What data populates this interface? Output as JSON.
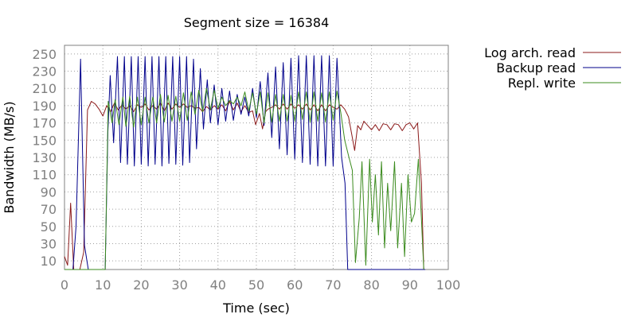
{
  "chart_data": {
    "type": "line",
    "title": "Segment size = 16384",
    "xlabel": "Time (sec)",
    "ylabel": "Bandwidth (MB/s)",
    "xlim": [
      0,
      100
    ],
    "ylim": [
      0,
      260
    ],
    "x_ticks": [
      0,
      10,
      20,
      30,
      40,
      50,
      60,
      70,
      80,
      90,
      100
    ],
    "y_ticks": [
      10,
      30,
      50,
      70,
      90,
      110,
      130,
      150,
      170,
      190,
      210,
      230,
      250
    ],
    "grid": true,
    "legend_position": "right",
    "series": [
      {
        "name": "Log arch. read",
        "color": "#8b1a1a",
        "points": [
          [
            0,
            15
          ],
          [
            0.8,
            5
          ],
          [
            1.6,
            77
          ],
          [
            2.4,
            0
          ],
          [
            3.2,
            0
          ],
          [
            4,
            0
          ],
          [
            5,
            20
          ],
          [
            6,
            185
          ],
          [
            7,
            195
          ],
          [
            8,
            192
          ],
          [
            9,
            186
          ],
          [
            10,
            178
          ],
          [
            11,
            190
          ],
          [
            12,
            183
          ],
          [
            13,
            193
          ],
          [
            14,
            185
          ],
          [
            15,
            191
          ],
          [
            16,
            186
          ],
          [
            17,
            190
          ],
          [
            18,
            183
          ],
          [
            19,
            191
          ],
          [
            20,
            188
          ],
          [
            21,
            192
          ],
          [
            22,
            185
          ],
          [
            23,
            190
          ],
          [
            24,
            186
          ],
          [
            25,
            193
          ],
          [
            26,
            184
          ],
          [
            27,
            193
          ],
          [
            28,
            186
          ],
          [
            29,
            192
          ],
          [
            30,
            188
          ],
          [
            31,
            192
          ],
          [
            32,
            188
          ],
          [
            33,
            190
          ],
          [
            34,
            187
          ],
          [
            35,
            188
          ],
          [
            36,
            183
          ],
          [
            37,
            189
          ],
          [
            38,
            185
          ],
          [
            39,
            190
          ],
          [
            40,
            186
          ],
          [
            41,
            191
          ],
          [
            42,
            184
          ],
          [
            43,
            195
          ],
          [
            44,
            185
          ],
          [
            45,
            193
          ],
          [
            46,
            183
          ],
          [
            47,
            190
          ],
          [
            48,
            182
          ],
          [
            49,
            184
          ],
          [
            49.8,
            168
          ],
          [
            50.8,
            181
          ],
          [
            51.6,
            163
          ],
          [
            52.4,
            183
          ],
          [
            53,
            186
          ],
          [
            54,
            188
          ],
          [
            55,
            191
          ],
          [
            56,
            186
          ],
          [
            57,
            192
          ],
          [
            58,
            186
          ],
          [
            59,
            192
          ],
          [
            60,
            187
          ],
          [
            61,
            191
          ],
          [
            62,
            186
          ],
          [
            63,
            192
          ],
          [
            64,
            185
          ],
          [
            65,
            191
          ],
          [
            66,
            184
          ],
          [
            67,
            191
          ],
          [
            68,
            184
          ],
          [
            69,
            191
          ],
          [
            70,
            188
          ],
          [
            71,
            186
          ],
          [
            72,
            191
          ],
          [
            73,
            186
          ],
          [
            74,
            177
          ],
          [
            74.8,
            158
          ],
          [
            75.6,
            138
          ],
          [
            76.4,
            167
          ],
          [
            77.2,
            162
          ],
          [
            78,
            172
          ],
          [
            79,
            167
          ],
          [
            80,
            162
          ],
          [
            81,
            168
          ],
          [
            82,
            161
          ],
          [
            83,
            169
          ],
          [
            84,
            168
          ],
          [
            85,
            162
          ],
          [
            86,
            169
          ],
          [
            87,
            168
          ],
          [
            88,
            161
          ],
          [
            89,
            168
          ],
          [
            90,
            170
          ],
          [
            91,
            163
          ],
          [
            92,
            170
          ],
          [
            93,
            100
          ],
          [
            93.6,
            0
          ]
        ]
      },
      {
        "name": "Backup read",
        "color": "#00008b",
        "points": [
          [
            0,
            0
          ],
          [
            1.4,
            0
          ],
          [
            2.2,
            0
          ],
          [
            3,
            50
          ],
          [
            4.2,
            244
          ],
          [
            5.2,
            28
          ],
          [
            6.2,
            0
          ],
          [
            7,
            0
          ],
          [
            8,
            0
          ],
          [
            9,
            0
          ],
          [
            10.6,
            0
          ],
          [
            11.3,
            160
          ],
          [
            11.9,
            225
          ],
          [
            12.8,
            147
          ],
          [
            13.8,
            247
          ],
          [
            14.6,
            124
          ],
          [
            15.6,
            247
          ],
          [
            16.4,
            122
          ],
          [
            17.4,
            247
          ],
          [
            18.2,
            120
          ],
          [
            19.2,
            247
          ],
          [
            20,
            122
          ],
          [
            21,
            247
          ],
          [
            21.8,
            120
          ],
          [
            22.8,
            247
          ],
          [
            23.6,
            122
          ],
          [
            24.6,
            247
          ],
          [
            25.4,
            120
          ],
          [
            26.4,
            247
          ],
          [
            27.2,
            123
          ],
          [
            28.2,
            247
          ],
          [
            29,
            122
          ],
          [
            30,
            247
          ],
          [
            30.8,
            121
          ],
          [
            31.8,
            247
          ],
          [
            32.6,
            124
          ],
          [
            33.6,
            244
          ],
          [
            34.4,
            140
          ],
          [
            35.4,
            233
          ],
          [
            36.2,
            163
          ],
          [
            37.2,
            220
          ],
          [
            38,
            170
          ],
          [
            39,
            214
          ],
          [
            40,
            168
          ],
          [
            41,
            210
          ],
          [
            42,
            172
          ],
          [
            43,
            207
          ],
          [
            44,
            173
          ],
          [
            45,
            203
          ],
          [
            46,
            180
          ],
          [
            47,
            200
          ],
          [
            48,
            178
          ],
          [
            49,
            210
          ],
          [
            50,
            176
          ],
          [
            51,
            218
          ],
          [
            52,
            167
          ],
          [
            53,
            228
          ],
          [
            54,
            153
          ],
          [
            55,
            235
          ],
          [
            56,
            140
          ],
          [
            57,
            240
          ],
          [
            58,
            133
          ],
          [
            59,
            245
          ],
          [
            60,
            128
          ],
          [
            61,
            248
          ],
          [
            62,
            124
          ],
          [
            63,
            248
          ],
          [
            64,
            122
          ],
          [
            65,
            248
          ],
          [
            66,
            120
          ],
          [
            67,
            248
          ],
          [
            68,
            120
          ],
          [
            69,
            248
          ],
          [
            70,
            120
          ],
          [
            71,
            245
          ],
          [
            72.2,
            130
          ],
          [
            73.1,
            100
          ],
          [
            73.8,
            0
          ],
          [
            80,
            0
          ],
          [
            90,
            0
          ],
          [
            94,
            0
          ]
        ]
      },
      {
        "name": "Repl. write",
        "color": "#3b8b1e",
        "points": [
          [
            0,
            0
          ],
          [
            6,
            0
          ],
          [
            7,
            0
          ],
          [
            8,
            0
          ],
          [
            9,
            0
          ],
          [
            10,
            0
          ],
          [
            10.6,
            0
          ],
          [
            11.4,
            195
          ],
          [
            12.4,
            170
          ],
          [
            13.2,
            197
          ],
          [
            14.2,
            168
          ],
          [
            15.2,
            200
          ],
          [
            16,
            166
          ],
          [
            17,
            201
          ],
          [
            18,
            165
          ],
          [
            19,
            200
          ],
          [
            20,
            168
          ],
          [
            21,
            200
          ],
          [
            22,
            170
          ],
          [
            23,
            200
          ],
          [
            24,
            170
          ],
          [
            25,
            203
          ],
          [
            26,
            171
          ],
          [
            27,
            202
          ],
          [
            28,
            172
          ],
          [
            29,
            201
          ],
          [
            30,
            172
          ],
          [
            31,
            205
          ],
          [
            32,
            173
          ],
          [
            33,
            206
          ],
          [
            34,
            180
          ],
          [
            35,
            208
          ],
          [
            36,
            183
          ],
          [
            37,
            210
          ],
          [
            38,
            185
          ],
          [
            39,
            208
          ],
          [
            40,
            187
          ],
          [
            41,
            200
          ],
          [
            42,
            190
          ],
          [
            43,
            196
          ],
          [
            44,
            192
          ],
          [
            45,
            200
          ],
          [
            46,
            190
          ],
          [
            47,
            206
          ],
          [
            48,
            184
          ],
          [
            49,
            205
          ],
          [
            50,
            180
          ],
          [
            51,
            206
          ],
          [
            52,
            170
          ],
          [
            53,
            205
          ],
          [
            54,
            171
          ],
          [
            55,
            203
          ],
          [
            56,
            172
          ],
          [
            57,
            203
          ],
          [
            58,
            172
          ],
          [
            59,
            202
          ],
          [
            60,
            172
          ],
          [
            61,
            206
          ],
          [
            62,
            174
          ],
          [
            63,
            206
          ],
          [
            64,
            171
          ],
          [
            65,
            206
          ],
          [
            66,
            172
          ],
          [
            67,
            205
          ],
          [
            68,
            171
          ],
          [
            69,
            206
          ],
          [
            70,
            173
          ],
          [
            71,
            207
          ],
          [
            72,
            182
          ],
          [
            73,
            150
          ],
          [
            74,
            132
          ],
          [
            75,
            115
          ],
          [
            75.8,
            8
          ],
          [
            76.8,
            60
          ],
          [
            77.5,
            125
          ],
          [
            78.5,
            5
          ],
          [
            79.5,
            128
          ],
          [
            80.2,
            55
          ],
          [
            81,
            110
          ],
          [
            81.8,
            40
          ],
          [
            82.6,
            125
          ],
          [
            83.4,
            25
          ],
          [
            84.2,
            100
          ],
          [
            85,
            45
          ],
          [
            86,
            125
          ],
          [
            86.8,
            25
          ],
          [
            87.8,
            100
          ],
          [
            88.6,
            15
          ],
          [
            89.5,
            110
          ],
          [
            90.4,
            55
          ],
          [
            91.2,
            65
          ],
          [
            92.2,
            128
          ],
          [
            93,
            58
          ],
          [
            93.6,
            0
          ]
        ]
      }
    ]
  }
}
